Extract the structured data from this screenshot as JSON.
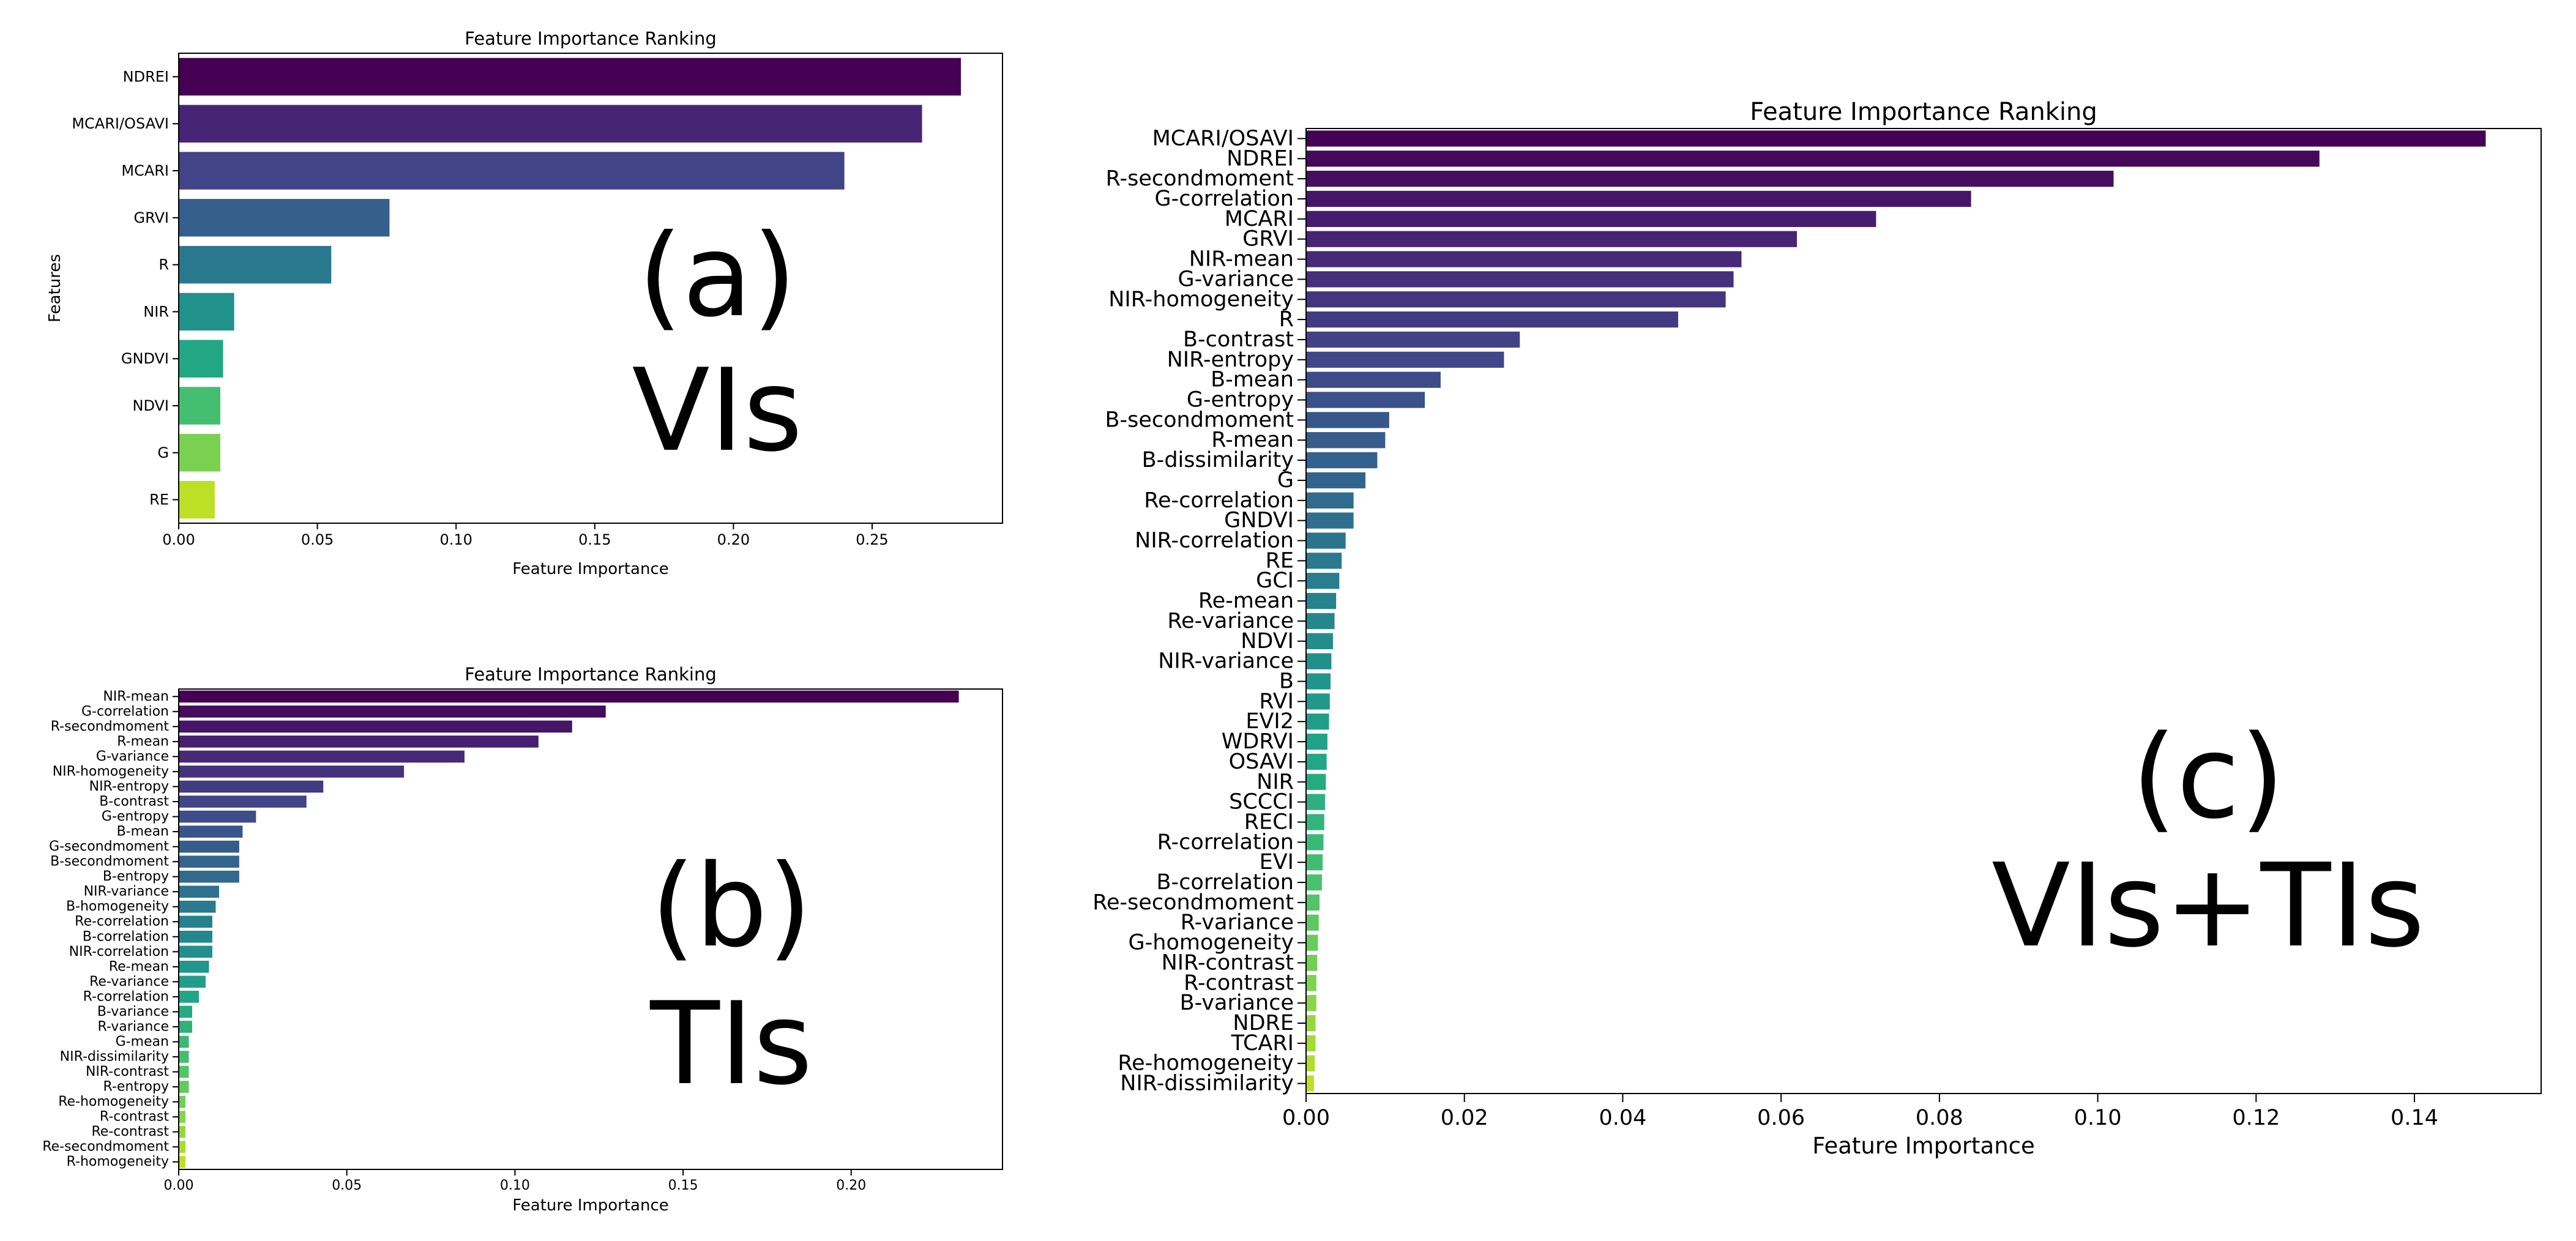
{
  "chart_data": [
    {
      "type": "bar",
      "orientation": "horizontal",
      "title": "Feature Importance Ranking",
      "xlabel": "Feature Importance",
      "ylabel": "Features",
      "xlim": [
        0,
        0.297
      ],
      "xticks": [
        "0.00",
        "0.05",
        "0.10",
        "0.15",
        "0.20",
        "0.25"
      ],
      "xtick_values": [
        0,
        0.05,
        0.1,
        0.15,
        0.2,
        0.25
      ],
      "panel_label": "(a)",
      "panel_subtitle": "VIs",
      "colormap": "viridis",
      "categories": [
        "NDREI",
        "MCARI/OSAVI",
        "MCARI",
        "GRVI",
        "R",
        "NIR",
        "GNDVI",
        "NDVI",
        "G",
        "RE"
      ],
      "values": [
        0.282,
        0.268,
        0.24,
        0.076,
        0.055,
        0.02,
        0.016,
        0.015,
        0.015,
        0.013
      ]
    },
    {
      "type": "bar",
      "orientation": "horizontal",
      "title": "Feature Importance Ranking",
      "xlabel": "Feature Importance",
      "ylabel": "",
      "xlim": [
        0,
        0.245
      ],
      "xticks": [
        "0.00",
        "0.05",
        "0.10",
        "0.15",
        "0.20"
      ],
      "xtick_values": [
        0,
        0.05,
        0.1,
        0.15,
        0.2
      ],
      "panel_label": "(b)",
      "panel_subtitle": "TIs",
      "colormap": "viridis",
      "categories": [
        "NIR-mean",
        "G-correlation",
        "R-secondmoment",
        "R-mean",
        "G-variance",
        "NIR-homogeneity",
        "NIR-entropy",
        "B-contrast",
        "G-entropy",
        "B-mean",
        "G-secondmoment",
        "B-secondmoment",
        "B-entropy",
        "NIR-variance",
        "B-homogeneity",
        "Re-correlation",
        "B-correlation",
        "NIR-correlation",
        "Re-mean",
        "Re-variance",
        "R-correlation",
        "B-variance",
        "R-variance",
        "G-mean",
        "NIR-dissimilarity",
        "NIR-contrast",
        "R-entropy",
        "Re-homogeneity",
        "R-contrast",
        "Re-contrast",
        "Re-secondmoment",
        "R-homogeneity"
      ],
      "values": [
        0.232,
        0.127,
        0.117,
        0.107,
        0.085,
        0.067,
        0.043,
        0.038,
        0.023,
        0.019,
        0.018,
        0.018,
        0.018,
        0.012,
        0.011,
        0.01,
        0.01,
        0.01,
        0.009,
        0.008,
        0.006,
        0.004,
        0.004,
        0.003,
        0.003,
        0.003,
        0.003,
        0.002,
        0.002,
        0.002,
        0.002,
        0.002
      ]
    },
    {
      "type": "bar",
      "orientation": "horizontal",
      "title": "Feature Importance Ranking",
      "xlabel": "Feature Importance",
      "ylabel": "",
      "xlim": [
        0,
        0.156
      ],
      "xticks": [
        "0.00",
        "0.02",
        "0.04",
        "0.06",
        "0.08",
        "0.10",
        "0.12",
        "0.14"
      ],
      "xtick_values": [
        0,
        0.02,
        0.04,
        0.06,
        0.08,
        0.1,
        0.12,
        0.14
      ],
      "panel_label": "(c)",
      "panel_subtitle": "VIs+TIs",
      "colormap": "viridis",
      "categories": [
        "MCARI/OSAVI",
        "NDREI",
        "R-secondmoment",
        "G-correlation",
        "MCARI",
        "GRVI",
        "NIR-mean",
        "G-variance",
        "NIR-homogeneity",
        "R",
        "B-contrast",
        "NIR-entropy",
        "B-mean",
        "G-entropy",
        "B-secondmoment",
        "R-mean",
        "B-dissimilarity",
        "G",
        "Re-correlation",
        "GNDVI",
        "NIR-correlation",
        "RE",
        "GCI",
        "Re-mean",
        "Re-variance",
        "NDVI",
        "NIR-variance",
        "B",
        "RVI",
        "EVI2",
        "WDRVI",
        "OSAVI",
        "NIR",
        "SCCCI",
        "RECI",
        "R-correlation",
        "EVI",
        "B-correlation",
        "Re-secondmoment",
        "R-variance",
        "G-homogeneity",
        "NIR-contrast",
        "R-contrast",
        "B-variance",
        "NDRE",
        "TCARI",
        "Re-homogeneity",
        "NIR-dissimilarity"
      ],
      "values": [
        0.149,
        0.128,
        0.102,
        0.084,
        0.072,
        0.062,
        0.055,
        0.054,
        0.053,
        0.047,
        0.027,
        0.025,
        0.017,
        0.015,
        0.0105,
        0.01,
        0.009,
        0.0075,
        0.006,
        0.006,
        0.005,
        0.0045,
        0.0042,
        0.0038,
        0.0036,
        0.0034,
        0.0032,
        0.0031,
        0.003,
        0.0029,
        0.0027,
        0.0026,
        0.0025,
        0.0024,
        0.0023,
        0.0022,
        0.0021,
        0.002,
        0.0017,
        0.0016,
        0.0015,
        0.0014,
        0.0013,
        0.0013,
        0.0012,
        0.0012,
        0.0011,
        0.001
      ]
    }
  ]
}
